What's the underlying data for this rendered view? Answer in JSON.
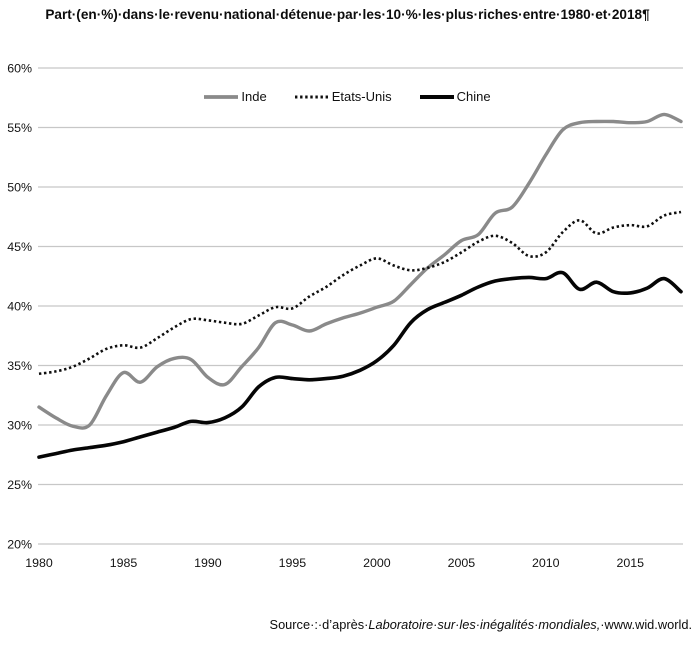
{
  "title": "Part·(en·%)·dans·le·revenu·national·détenue·par·les·10·%·les·plus·riches·entre·1980·et·2018¶",
  "source": {
    "prefix": "Source·:·d’après·",
    "italic": "Laboratoire·sur·les·inégalités·mondiales,",
    "suffix": "·www.wid.world."
  },
  "chart_data": {
    "type": "line",
    "title": "Part (en %) dans le revenu national détenue par les 10 % les plus riches entre 1980 et 2018",
    "xlabel": "",
    "ylabel": "",
    "ylim": [
      20,
      60
    ],
    "y_tick_step": 5,
    "y_tick_suffix": "%",
    "x_ticks": [
      1980,
      1985,
      1990,
      1995,
      2000,
      2005,
      2010,
      2015
    ],
    "x": [
      1980,
      1981,
      1982,
      1983,
      1984,
      1985,
      1986,
      1987,
      1988,
      1989,
      1990,
      1991,
      1992,
      1993,
      1994,
      1995,
      1996,
      1997,
      1998,
      1999,
      2000,
      2001,
      2002,
      2003,
      2004,
      2005,
      2006,
      2007,
      2008,
      2009,
      2010,
      2011,
      2012,
      2013,
      2014,
      2015,
      2016,
      2017,
      2018
    ],
    "grid": "horizontal",
    "gridline_color": "#c7c7c7",
    "legend_position": "top-center",
    "series": [
      {
        "name": "Inde",
        "color": "#8a8a8a",
        "style": "solid",
        "width": 3.4,
        "values": [
          31.5,
          30.6,
          29.9,
          30.0,
          32.5,
          34.4,
          33.6,
          34.9,
          35.6,
          35.5,
          34.0,
          33.4,
          34.9,
          36.5,
          38.6,
          38.4,
          37.9,
          38.5,
          39.0,
          39.4,
          39.9,
          40.4,
          41.8,
          43.2,
          44.3,
          45.5,
          46.0,
          47.8,
          48.3,
          50.3,
          52.7,
          54.8,
          55.4,
          55.5,
          55.5,
          55.4,
          55.5,
          56.1,
          55.5
        ]
      },
      {
        "name": "Etats-Unis",
        "color": "#0f0f0f",
        "style": "dotted",
        "width": 2.6,
        "values": [
          34.3,
          34.5,
          34.9,
          35.6,
          36.4,
          36.7,
          36.5,
          37.3,
          38.2,
          38.9,
          38.8,
          38.6,
          38.5,
          39.2,
          39.9,
          39.8,
          40.8,
          41.6,
          42.6,
          43.4,
          44.0,
          43.4,
          43.0,
          43.2,
          43.7,
          44.5,
          45.4,
          45.9,
          45.3,
          44.2,
          44.5,
          46.2,
          47.2,
          46.1,
          46.6,
          46.8,
          46.7,
          47.6,
          47.9
        ]
      },
      {
        "name": "Chine",
        "color": "#050505",
        "style": "solid",
        "width": 3.6,
        "values": [
          27.3,
          27.6,
          27.9,
          28.1,
          28.3,
          28.6,
          29.0,
          29.4,
          29.8,
          30.3,
          30.2,
          30.6,
          31.5,
          33.2,
          34.0,
          33.9,
          33.8,
          33.9,
          34.1,
          34.6,
          35.4,
          36.7,
          38.6,
          39.7,
          40.3,
          40.9,
          41.6,
          42.1,
          42.3,
          42.4,
          42.3,
          42.8,
          41.4,
          42.0,
          41.2,
          41.1,
          41.5,
          42.3,
          41.2
        ]
      }
    ]
  }
}
